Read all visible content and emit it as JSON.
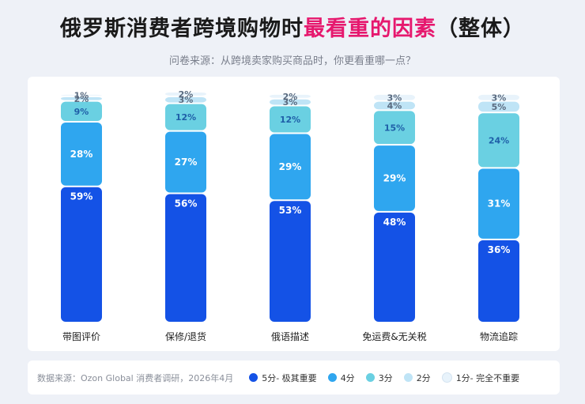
{
  "header": {
    "title_main": "俄罗斯消费者跨境购物时",
    "title_accent": "最看重的因素",
    "title_tail": "（整体）",
    "subtitle": "问卷来源：从跨境卖家购买商品时，你更看重哪一点？"
  },
  "footer": {
    "source": "数据来源：Ozon Global 消费者调研，2026年4月"
  },
  "colors": {
    "accent": "#e6186e",
    "s5": "#1452e6",
    "s4": "#2fa6ef",
    "s3": "#6ad0e2",
    "s2": "#bfe4f6",
    "s1": "#e8f3fb"
  },
  "chart_data": {
    "type": "bar",
    "stacked": true,
    "categories": [
      "带图评价",
      "保修/退货",
      "俄语描述",
      "免运费&无关税",
      "物流追踪"
    ],
    "series": [
      {
        "name": "5分- 极其重要",
        "values": [
          59,
          56,
          53,
          48,
          36
        ],
        "color": "#1452e6"
      },
      {
        "name": "4分",
        "values": [
          28,
          27,
          29,
          29,
          31
        ],
        "color": "#2fa6ef"
      },
      {
        "name": "3分",
        "values": [
          9,
          12,
          12,
          15,
          24
        ],
        "color": "#6ad0e2"
      },
      {
        "name": "2分",
        "values": [
          2,
          3,
          3,
          4,
          5
        ],
        "color": "#bfe4f6"
      },
      {
        "name": "1分- 完全不重要",
        "values": [
          1,
          2,
          2,
          3,
          3
        ],
        "color": "#e8f3fb"
      }
    ],
    "value_suffix": "%",
    "ylim": [
      0,
      100
    ],
    "grid": false,
    "legend_position": "bottom"
  }
}
